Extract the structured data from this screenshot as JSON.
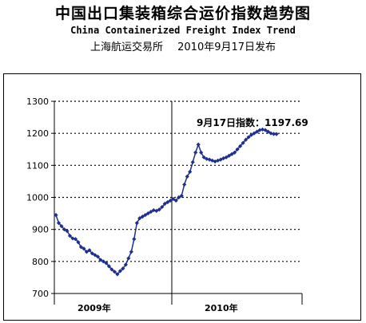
{
  "header": {
    "title_cn": "中国出口集装箱综合运价指数趋势图",
    "title_en": "China Containerized Freight Index Trend",
    "publisher": "上海航运交易所",
    "release_date": "2010年9月17日发布"
  },
  "chart_data": {
    "type": "line",
    "title": "中国出口集装箱综合运价指数趋势图",
    "subtitle": "China Containerized Freight Index Trend",
    "xlabel": "",
    "ylabel": "",
    "ylim": [
      700,
      1300
    ],
    "yticks": [
      700,
      800,
      900,
      1000,
      1100,
      1200,
      1300
    ],
    "grid": true,
    "grid_style": "dotted",
    "marker": "diamond",
    "line_color": "#1f2f8f",
    "year_labels": [
      "2009年",
      "2010年"
    ],
    "year_divider_index": 41,
    "annotation": "9月17日指数：1197.69",
    "series": [
      {
        "values": [
          945,
          920,
          910,
          900,
          895,
          880,
          872,
          870,
          860,
          845,
          840,
          830,
          835,
          825,
          820,
          815,
          805,
          800,
          795,
          785,
          775,
          768,
          760,
          770,
          778,
          790,
          810,
          830,
          870,
          920,
          935,
          940,
          945,
          950,
          955,
          960,
          958,
          962,
          970,
          980,
          985,
          990,
          995,
          990,
          1000,
          1005,
          1040,
          1065,
          1080,
          1110,
          1140,
          1165,
          1140,
          1125,
          1120,
          1118,
          1115,
          1112,
          1115,
          1118,
          1122,
          1125,
          1130,
          1135,
          1140,
          1150,
          1160,
          1170,
          1180,
          1188,
          1195,
          1200,
          1205,
          1210,
          1212,
          1210,
          1205,
          1200,
          1198,
          1197.69
        ]
      }
    ]
  }
}
